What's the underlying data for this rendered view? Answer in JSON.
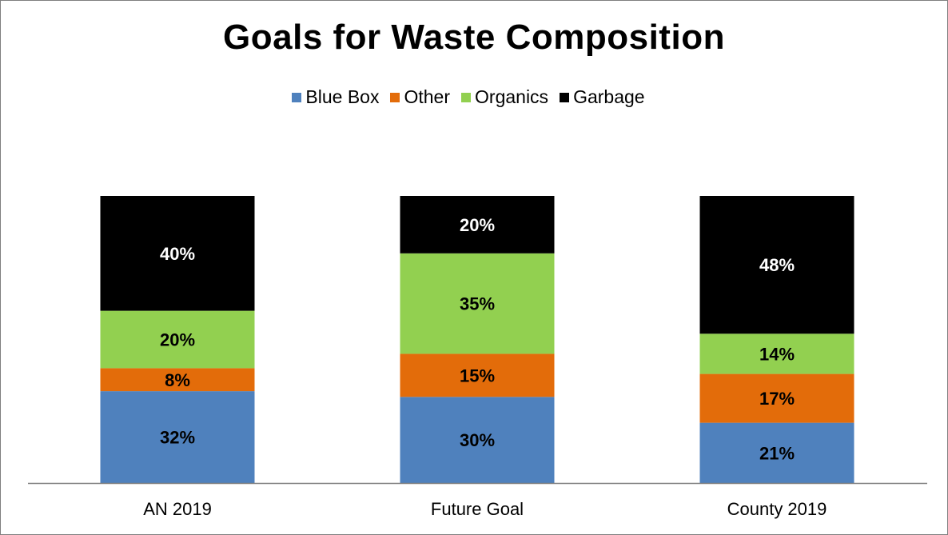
{
  "colors": {
    "blue_box": "#4f81bd",
    "other": "#e36c0a",
    "organics": "#92d050",
    "garbage": "#000000",
    "axis": "#7f7f7f"
  },
  "chart_data": {
    "type": "bar",
    "stacked": true,
    "title": "Goals for Waste Composition",
    "xlabel": "",
    "ylabel": "",
    "ylim": [
      0,
      100
    ],
    "grid": false,
    "legend_position": "top",
    "categories": [
      "AN 2019",
      "Future Goal",
      "County 2019"
    ],
    "series": [
      {
        "name": "Blue Box",
        "values": [
          32,
          30,
          21
        ],
        "labels": [
          "32%",
          "30%",
          "21%"
        ],
        "color": "#4f81bd",
        "label_color": "#000000"
      },
      {
        "name": "Other",
        "values": [
          8,
          15,
          17
        ],
        "labels": [
          "8%",
          "15%",
          "17%"
        ],
        "color": "#e36c0a",
        "label_color": "#000000"
      },
      {
        "name": "Organics",
        "values": [
          20,
          35,
          14
        ],
        "labels": [
          "20%",
          "35%",
          "14%"
        ],
        "color": "#92d050",
        "label_color": "#000000"
      },
      {
        "name": "Garbage",
        "values": [
          40,
          20,
          48
        ],
        "labels": [
          "40%",
          "20%",
          "48%"
        ],
        "color": "#000000",
        "label_color": "#ffffff"
      }
    ]
  }
}
